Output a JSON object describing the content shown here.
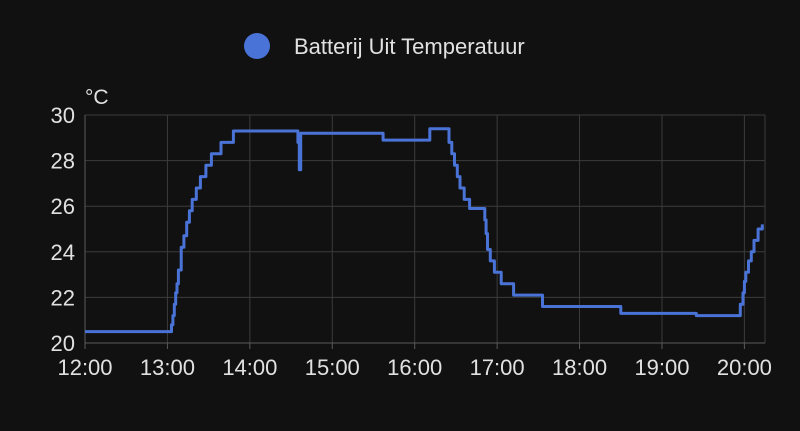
{
  "colors": {
    "series": "#4a73d8",
    "background": "#111111",
    "text": "#e1e1e1",
    "grid": "#3c3c3c"
  },
  "chart_data": {
    "type": "line",
    "title": "",
    "xlabel": "",
    "ylabel": "°C",
    "legend": {
      "position": "top-center",
      "entries": [
        "Batterij Uit Temperatuur"
      ]
    },
    "grid": true,
    "xlim": [
      "12:00",
      "20:15"
    ],
    "ylim": [
      20,
      30
    ],
    "x_ticks": [
      "12:00",
      "13:00",
      "14:00",
      "15:00",
      "16:00",
      "17:00",
      "18:00",
      "19:00",
      "20:00"
    ],
    "y_ticks": [
      "20",
      "22",
      "24",
      "26",
      "28",
      "30"
    ],
    "series": [
      {
        "name": "Batterij Uit Temperatuur",
        "step": true,
        "points": [
          [
            "12:00",
            20.5
          ],
          [
            "13:02",
            20.5
          ],
          [
            "13:03",
            20.8
          ],
          [
            "13:04",
            21.2
          ],
          [
            "13:05",
            21.7
          ],
          [
            "13:06",
            22.2
          ],
          [
            "13:07",
            22.6
          ],
          [
            "13:08",
            23.2
          ],
          [
            "13:10",
            24.2
          ],
          [
            "13:12",
            24.7
          ],
          [
            "13:14",
            25.3
          ],
          [
            "13:16",
            25.8
          ],
          [
            "13:18",
            26.3
          ],
          [
            "13:21",
            26.8
          ],
          [
            "13:24",
            27.3
          ],
          [
            "13:28",
            27.8
          ],
          [
            "13:32",
            28.3
          ],
          [
            "13:39",
            28.8
          ],
          [
            "13:48",
            29.3
          ],
          [
            "14:34",
            29.3
          ],
          [
            "14:35",
            28.8
          ],
          [
            "14:36",
            27.6
          ],
          [
            "14:37",
            29.2
          ],
          [
            "15:36",
            29.2
          ],
          [
            "15:37",
            28.9
          ],
          [
            "16:10",
            28.9
          ],
          [
            "16:11",
            29.4
          ],
          [
            "16:23",
            29.4
          ],
          [
            "16:25",
            28.8
          ],
          [
            "16:27",
            28.3
          ],
          [
            "16:29",
            27.8
          ],
          [
            "16:31",
            27.3
          ],
          [
            "16:33",
            26.8
          ],
          [
            "16:36",
            26.3
          ],
          [
            "16:40",
            25.9
          ],
          [
            "16:50",
            25.9
          ],
          [
            "16:51",
            25.4
          ],
          [
            "16:52",
            24.8
          ],
          [
            "16:53",
            24.1
          ],
          [
            "16:55",
            23.6
          ],
          [
            "16:58",
            23.1
          ],
          [
            "17:03",
            22.6
          ],
          [
            "17:12",
            22.1
          ],
          [
            "17:33",
            21.6
          ],
          [
            "18:30",
            21.3
          ],
          [
            "19:25",
            21.2
          ],
          [
            "19:55",
            21.2
          ],
          [
            "19:57",
            21.7
          ],
          [
            "19:59",
            22.2
          ],
          [
            "20:00",
            22.7
          ],
          [
            "20:01",
            23.1
          ],
          [
            "20:03",
            23.6
          ],
          [
            "20:05",
            24.0
          ],
          [
            "20:07",
            24.5
          ],
          [
            "20:10",
            25.0
          ],
          [
            "20:13",
            25.2
          ]
        ]
      }
    ]
  }
}
